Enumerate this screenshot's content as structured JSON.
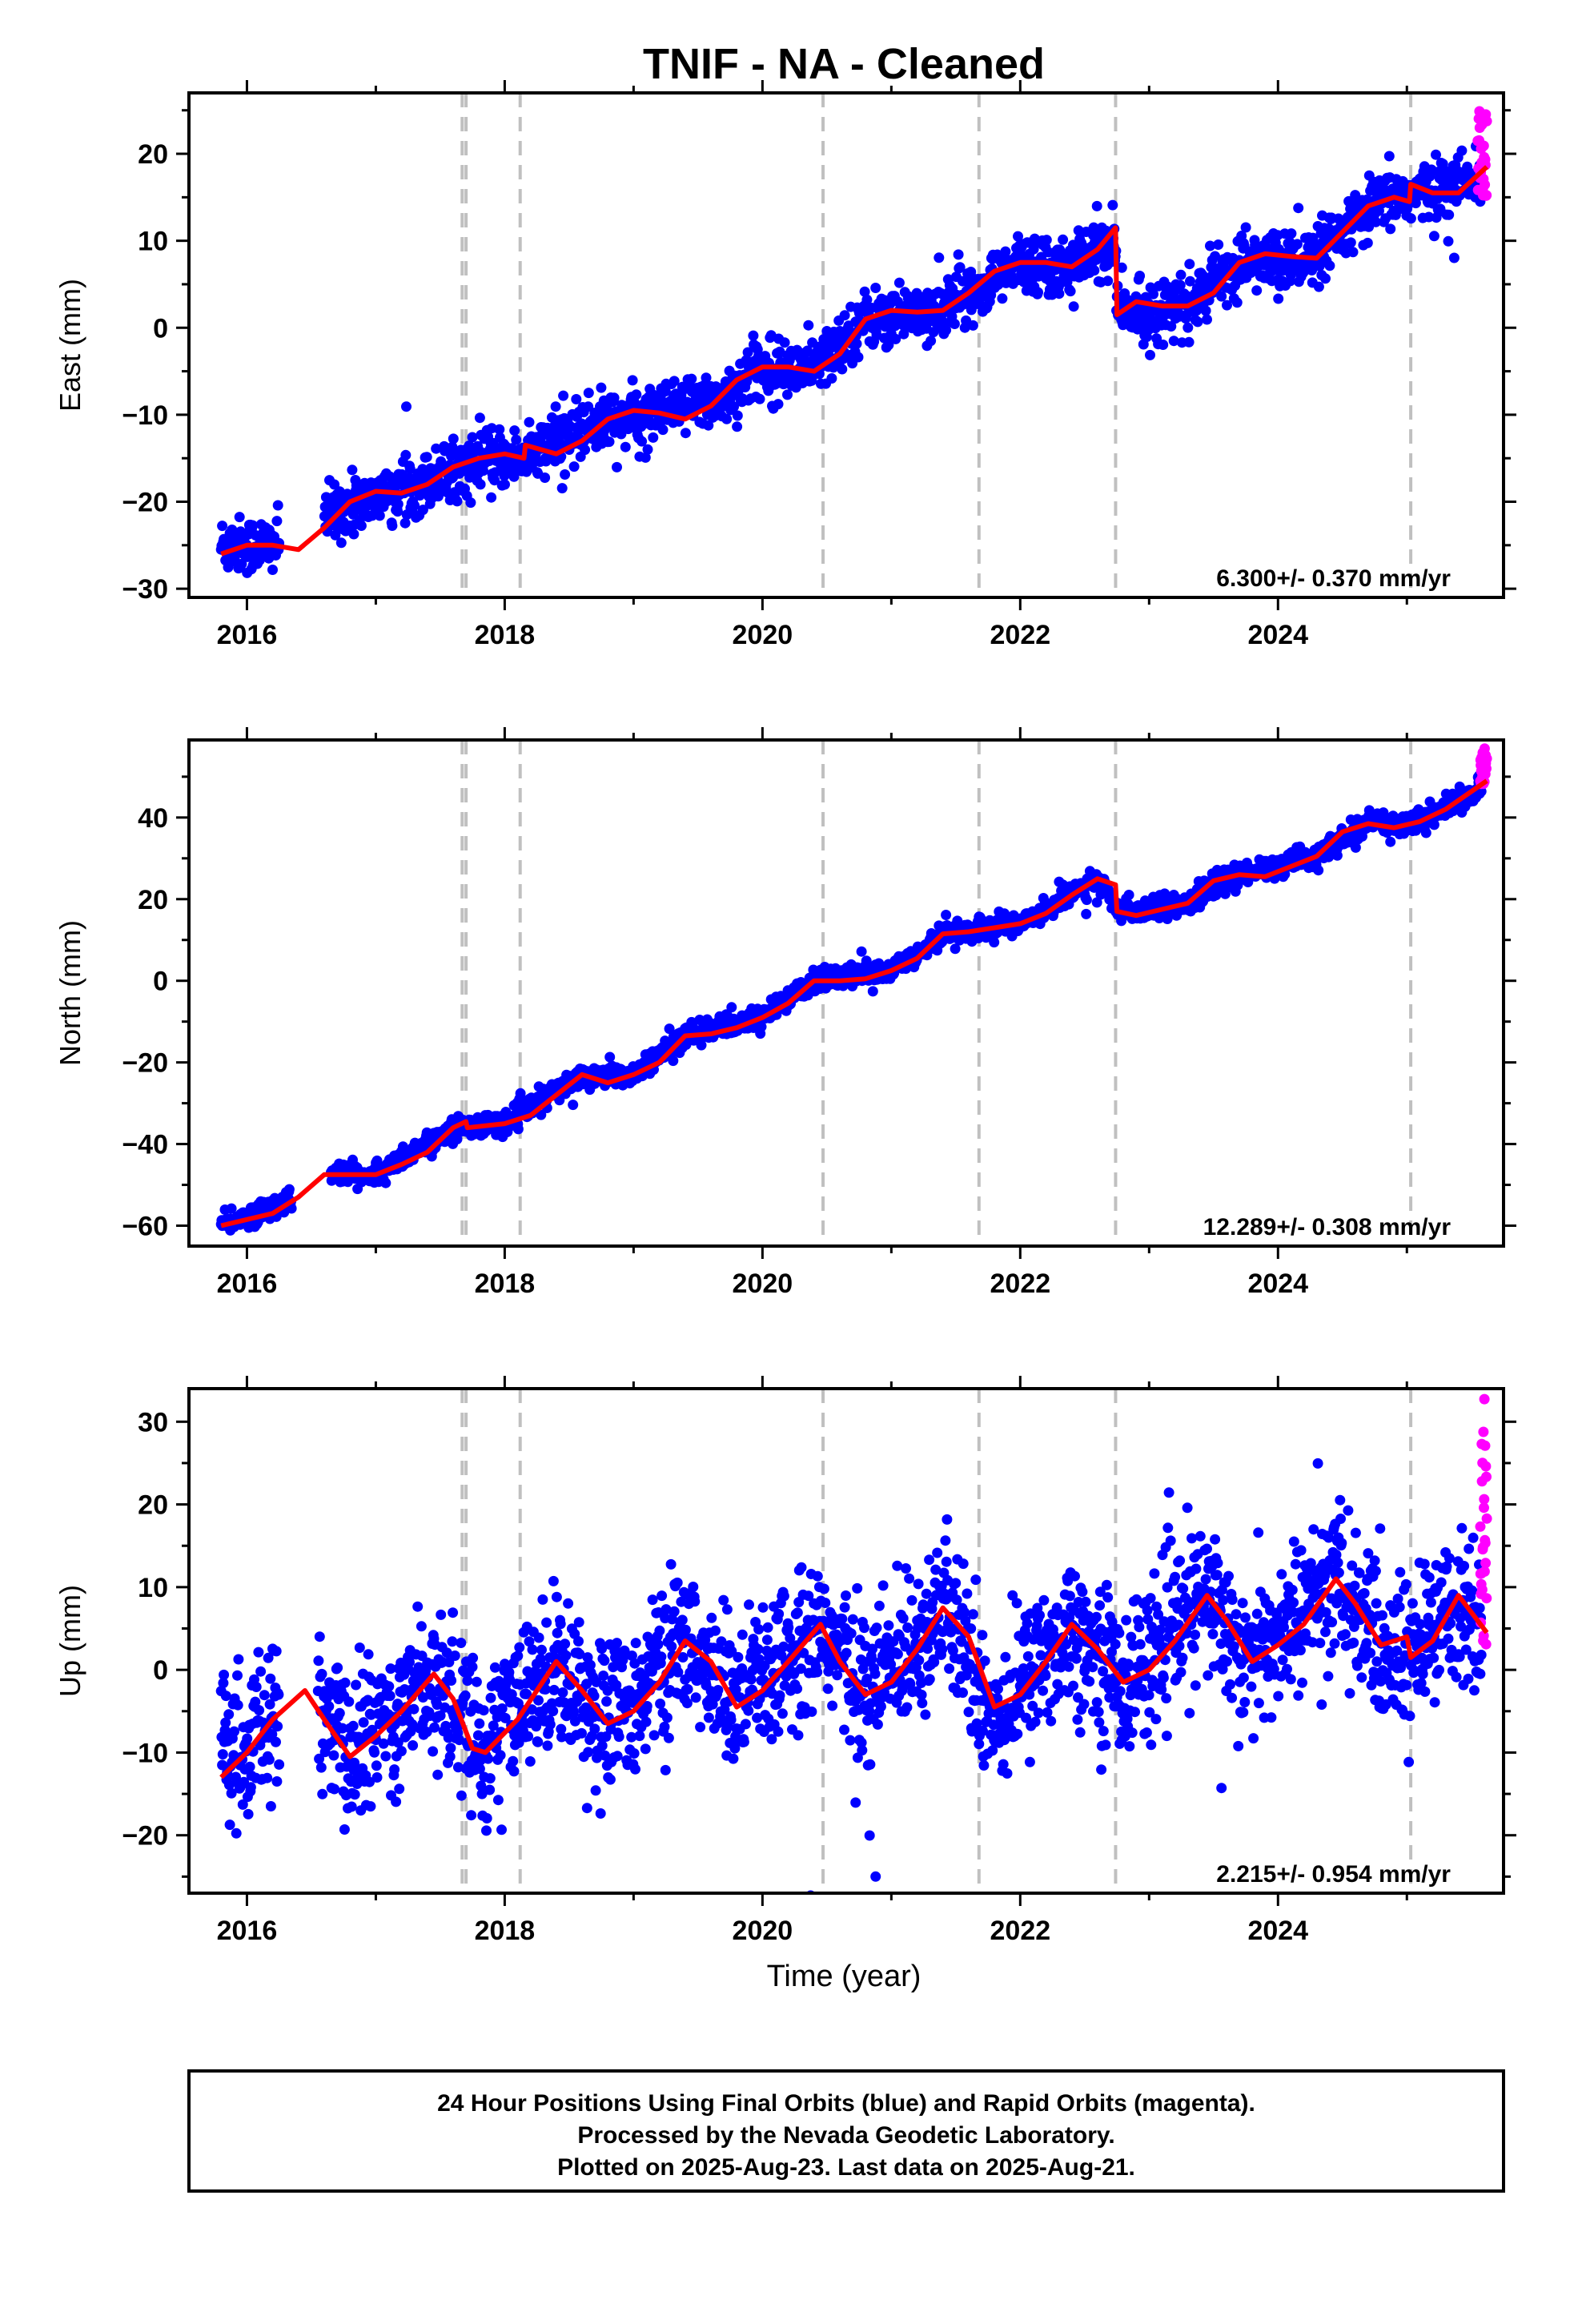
{
  "figure": {
    "title": "TNIF  - NA - Cleaned",
    "xlabel": "Time (year)",
    "footer": [
      "24 Hour Positions Using Final Orbits (blue) and Rapid Orbits (magenta).",
      "Processed by the Nevada Geodetic Laboratory.",
      "Plotted on 2025-Aug-23. Last data on 2025-Aug-21."
    ],
    "colors": {
      "final": "#0000ff",
      "rapid": "#ff00ff",
      "model": "#ff0000",
      "events": "#c0c0c0",
      "frame": "#000000"
    }
  },
  "chart_data": [
    {
      "type": "scatter",
      "component": "East",
      "ylabel": "East (mm)",
      "rate_label": "6.300+/- 0.370 mm/yr",
      "xlim": [
        2015.55,
        2025.75
      ],
      "ylim": [
        -31,
        27
      ],
      "yticks": [
        -30,
        -20,
        -10,
        0,
        10,
        20
      ],
      "xticks": [
        2016,
        2018,
        2020,
        2022,
        2024
      ],
      "event_lines": [
        2017.67,
        2017.7,
        2018.12,
        2020.47,
        2021.68,
        2022.74,
        2025.03
      ],
      "model_fit": {
        "x": [
          2015.8,
          2016.0,
          2016.2,
          2016.4,
          2016.6,
          2016.8,
          2017.0,
          2017.2,
          2017.4,
          2017.6,
          2017.8,
          2018.0,
          2018.15,
          2018.16,
          2018.4,
          2018.6,
          2018.8,
          2019.0,
          2019.2,
          2019.4,
          2019.6,
          2019.8,
          2020.0,
          2020.2,
          2020.4,
          2020.6,
          2020.8,
          2021.0,
          2021.2,
          2021.4,
          2021.6,
          2021.8,
          2022.0,
          2022.2,
          2022.4,
          2022.6,
          2022.74,
          2022.75,
          2022.9,
          2023.1,
          2023.3,
          2023.5,
          2023.7,
          2023.9,
          2024.1,
          2024.3,
          2024.5,
          2024.7,
          2024.9,
          2025.02,
          2025.03,
          2025.2,
          2025.4,
          2025.62
        ],
        "y": [
          -26.0,
          -25.0,
          -25.0,
          -25.5,
          -23.0,
          -20.0,
          -18.8,
          -19.0,
          -18.0,
          -16.0,
          -15.0,
          -14.5,
          -15.0,
          -13.5,
          -14.5,
          -13.0,
          -10.5,
          -9.5,
          -9.8,
          -10.5,
          -9.0,
          -6.0,
          -4.5,
          -4.5,
          -5.0,
          -3.0,
          1.0,
          2.0,
          1.8,
          2.0,
          4.0,
          6.5,
          7.5,
          7.5,
          7.0,
          9.0,
          11.5,
          1.5,
          3.0,
          2.5,
          2.5,
          4.0,
          7.5,
          8.5,
          8.2,
          8.0,
          11.0,
          14.0,
          15.0,
          14.5,
          16.5,
          15.5,
          15.5,
          18.5
        ]
      },
      "final_trend": [
        [
          2015.8,
          -25.0
        ],
        [
          2016.2,
          -25.0
        ],
        [
          2016.6,
          -21.5
        ],
        [
          2017.2,
          -18.5
        ],
        [
          2017.7,
          -16.0
        ],
        [
          2018.2,
          -14.5
        ],
        [
          2018.7,
          -11.0
        ],
        [
          2019.2,
          -9.8
        ],
        [
          2019.7,
          -8.0
        ],
        [
          2020.0,
          -4.5
        ],
        [
          2020.4,
          -4.8
        ],
        [
          2020.8,
          1.0
        ],
        [
          2021.3,
          2.0
        ],
        [
          2021.7,
          4.5
        ],
        [
          2022.0,
          7.5
        ],
        [
          2022.4,
          7.0
        ],
        [
          2022.73,
          10.0
        ],
        [
          2022.76,
          1.5
        ],
        [
          2023.3,
          2.5
        ],
        [
          2023.7,
          7.5
        ],
        [
          2024.3,
          8.0
        ],
        [
          2024.8,
          14.5
        ],
        [
          2025.1,
          15.5
        ],
        [
          2025.58,
          17.0
        ]
      ],
      "final_noise": 1.6,
      "rapid_x": [
        2025.55,
        2025.62
      ],
      "rapid_y": [
        15,
        26
      ]
    },
    {
      "type": "scatter",
      "component": "North",
      "ylabel": "North (mm)",
      "rate_label": "12.289+/- 0.308 mm/yr",
      "xlim": [
        2015.55,
        2025.75
      ],
      "ylim": [
        -65,
        59
      ],
      "yticks": [
        -60,
        -40,
        -20,
        0,
        20,
        40
      ],
      "xticks": [
        2016,
        2018,
        2020,
        2022,
        2024
      ],
      "event_lines": [
        2017.67,
        2017.7,
        2018.12,
        2020.47,
        2021.68,
        2022.74,
        2025.03
      ],
      "model_fit": {
        "x": [
          2015.8,
          2016.2,
          2016.4,
          2016.6,
          2016.8,
          2017.0,
          2017.2,
          2017.4,
          2017.6,
          2017.7,
          2017.71,
          2018.0,
          2018.2,
          2018.4,
          2018.6,
          2018.8,
          2019.0,
          2019.2,
          2019.4,
          2019.6,
          2019.8,
          2020.0,
          2020.2,
          2020.4,
          2020.6,
          2020.8,
          2021.0,
          2021.2,
          2021.4,
          2021.6,
          2021.8,
          2022.0,
          2022.2,
          2022.4,
          2022.6,
          2022.74,
          2022.75,
          2022.9,
          2023.1,
          2023.3,
          2023.5,
          2023.7,
          2023.9,
          2024.1,
          2024.3,
          2024.5,
          2024.7,
          2024.9,
          2025.1,
          2025.3,
          2025.62
        ],
        "y": [
          -60.0,
          -57.0,
          -53.0,
          -47.5,
          -47.5,
          -47.5,
          -45.0,
          -42.0,
          -36.0,
          -34.5,
          -36.0,
          -35.0,
          -33.0,
          -28.0,
          -23.0,
          -25.0,
          -23.0,
          -20.0,
          -13.5,
          -13.0,
          -11.5,
          -9.0,
          -5.5,
          0.0,
          0.0,
          0.5,
          2.5,
          5.5,
          11.5,
          12.0,
          13.0,
          14.0,
          16.5,
          21.0,
          25.0,
          23.5,
          17.0,
          16.0,
          17.5,
          19.0,
          24.5,
          26.0,
          25.5,
          28.0,
          30.5,
          36.5,
          38.5,
          37.5,
          39.0,
          42.0,
          49.0
        ]
      },
      "final_trend": [
        [
          2015.8,
          -60.0
        ],
        [
          2016.4,
          -53.0
        ],
        [
          2016.7,
          -47.0
        ],
        [
          2017.0,
          -47.5
        ],
        [
          2017.6,
          -36.0
        ],
        [
          2018.0,
          -35.0
        ],
        [
          2018.6,
          -23.0
        ],
        [
          2019.0,
          -23.0
        ],
        [
          2019.4,
          -13.5
        ],
        [
          2020.0,
          -9.0
        ],
        [
          2020.4,
          0.0
        ],
        [
          2021.0,
          2.5
        ],
        [
          2021.4,
          11.5
        ],
        [
          2022.0,
          14.0
        ],
        [
          2022.6,
          25.0
        ],
        [
          2022.76,
          17.0
        ],
        [
          2023.3,
          19.0
        ],
        [
          2023.7,
          26.0
        ],
        [
          2024.3,
          30.5
        ],
        [
          2024.7,
          38.5
        ],
        [
          2025.1,
          39.0
        ],
        [
          2025.58,
          47.0
        ]
      ],
      "final_noise": 1.3,
      "rapid_x": [
        2025.57,
        2025.62
      ],
      "rapid_y": [
        48,
        57
      ]
    },
    {
      "type": "scatter",
      "component": "Up",
      "ylabel": "Up (mm)",
      "rate_label": "2.215+/- 0.954 mm/yr",
      "xlim": [
        2015.55,
        2025.75
      ],
      "ylim": [
        -27,
        34
      ],
      "yticks": [
        -20,
        -10,
        0,
        10,
        20,
        30
      ],
      "xticks": [
        2016,
        2018,
        2020,
        2022,
        2024
      ],
      "event_lines": [
        2017.67,
        2017.7,
        2018.12,
        2020.47,
        2021.68,
        2022.74,
        2025.03
      ],
      "model_fit": {
        "x": [
          2015.8,
          2016.0,
          2016.2,
          2016.45,
          2016.6,
          2016.8,
          2017.0,
          2017.2,
          2017.45,
          2017.6,
          2017.75,
          2017.85,
          2018.1,
          2018.4,
          2018.6,
          2018.8,
          2019.0,
          2019.2,
          2019.4,
          2019.6,
          2019.8,
          2020.0,
          2020.2,
          2020.45,
          2020.6,
          2020.8,
          2021.0,
          2021.2,
          2021.4,
          2021.6,
          2021.8,
          2022.0,
          2022.2,
          2022.4,
          2022.6,
          2022.8,
          2023.0,
          2023.2,
          2023.45,
          2023.6,
          2023.8,
          2024.0,
          2024.2,
          2024.45,
          2024.6,
          2024.8,
          2025.0,
          2025.03,
          2025.2,
          2025.4,
          2025.62
        ],
        "y": [
          -13.0,
          -10.0,
          -6.0,
          -2.5,
          -6.0,
          -10.5,
          -8.0,
          -5.0,
          -0.5,
          -3.5,
          -9.5,
          -10.0,
          -6.0,
          1.0,
          -2.5,
          -6.5,
          -5.0,
          -1.5,
          3.5,
          1.0,
          -4.5,
          -2.5,
          1.0,
          5.5,
          1.0,
          -3.0,
          -1.5,
          2.5,
          7.5,
          4.0,
          -4.5,
          -3.0,
          1.0,
          5.5,
          2.5,
          -1.5,
          0.0,
          3.5,
          9.0,
          6.0,
          1.0,
          3.0,
          5.5,
          11.0,
          8.0,
          3.0,
          4.0,
          1.5,
          3.5,
          9.0,
          4.5
        ]
      },
      "final_trend": [
        [
          2015.8,
          -9.0
        ],
        [
          2016.0,
          -10.0
        ],
        [
          2016.2,
          -6.0
        ],
        [
          2016.45,
          -2.5
        ],
        [
          2016.8,
          -10.0
        ],
        [
          2017.45,
          -0.5
        ],
        [
          2017.85,
          -9.5
        ],
        [
          2018.4,
          1.0
        ],
        [
          2018.8,
          -6.5
        ],
        [
          2019.4,
          3.5
        ],
        [
          2019.8,
          -4.5
        ],
        [
          2020.45,
          5.5
        ],
        [
          2020.8,
          -3.0
        ],
        [
          2021.4,
          7.5
        ],
        [
          2021.8,
          -6.0
        ],
        [
          2022.4,
          5.5
        ],
        [
          2022.8,
          -1.5
        ],
        [
          2023.45,
          9.0
        ],
        [
          2023.8,
          1.0
        ],
        [
          2024.45,
          11.0
        ],
        [
          2024.8,
          2.0
        ],
        [
          2025.05,
          2.0
        ],
        [
          2025.4,
          8.0
        ],
        [
          2025.58,
          4.0
        ]
      ],
      "final_noise": 4.5,
      "rapid_x": [
        2025.57,
        2025.62
      ],
      "rapid_y": [
        3,
        33
      ]
    }
  ]
}
